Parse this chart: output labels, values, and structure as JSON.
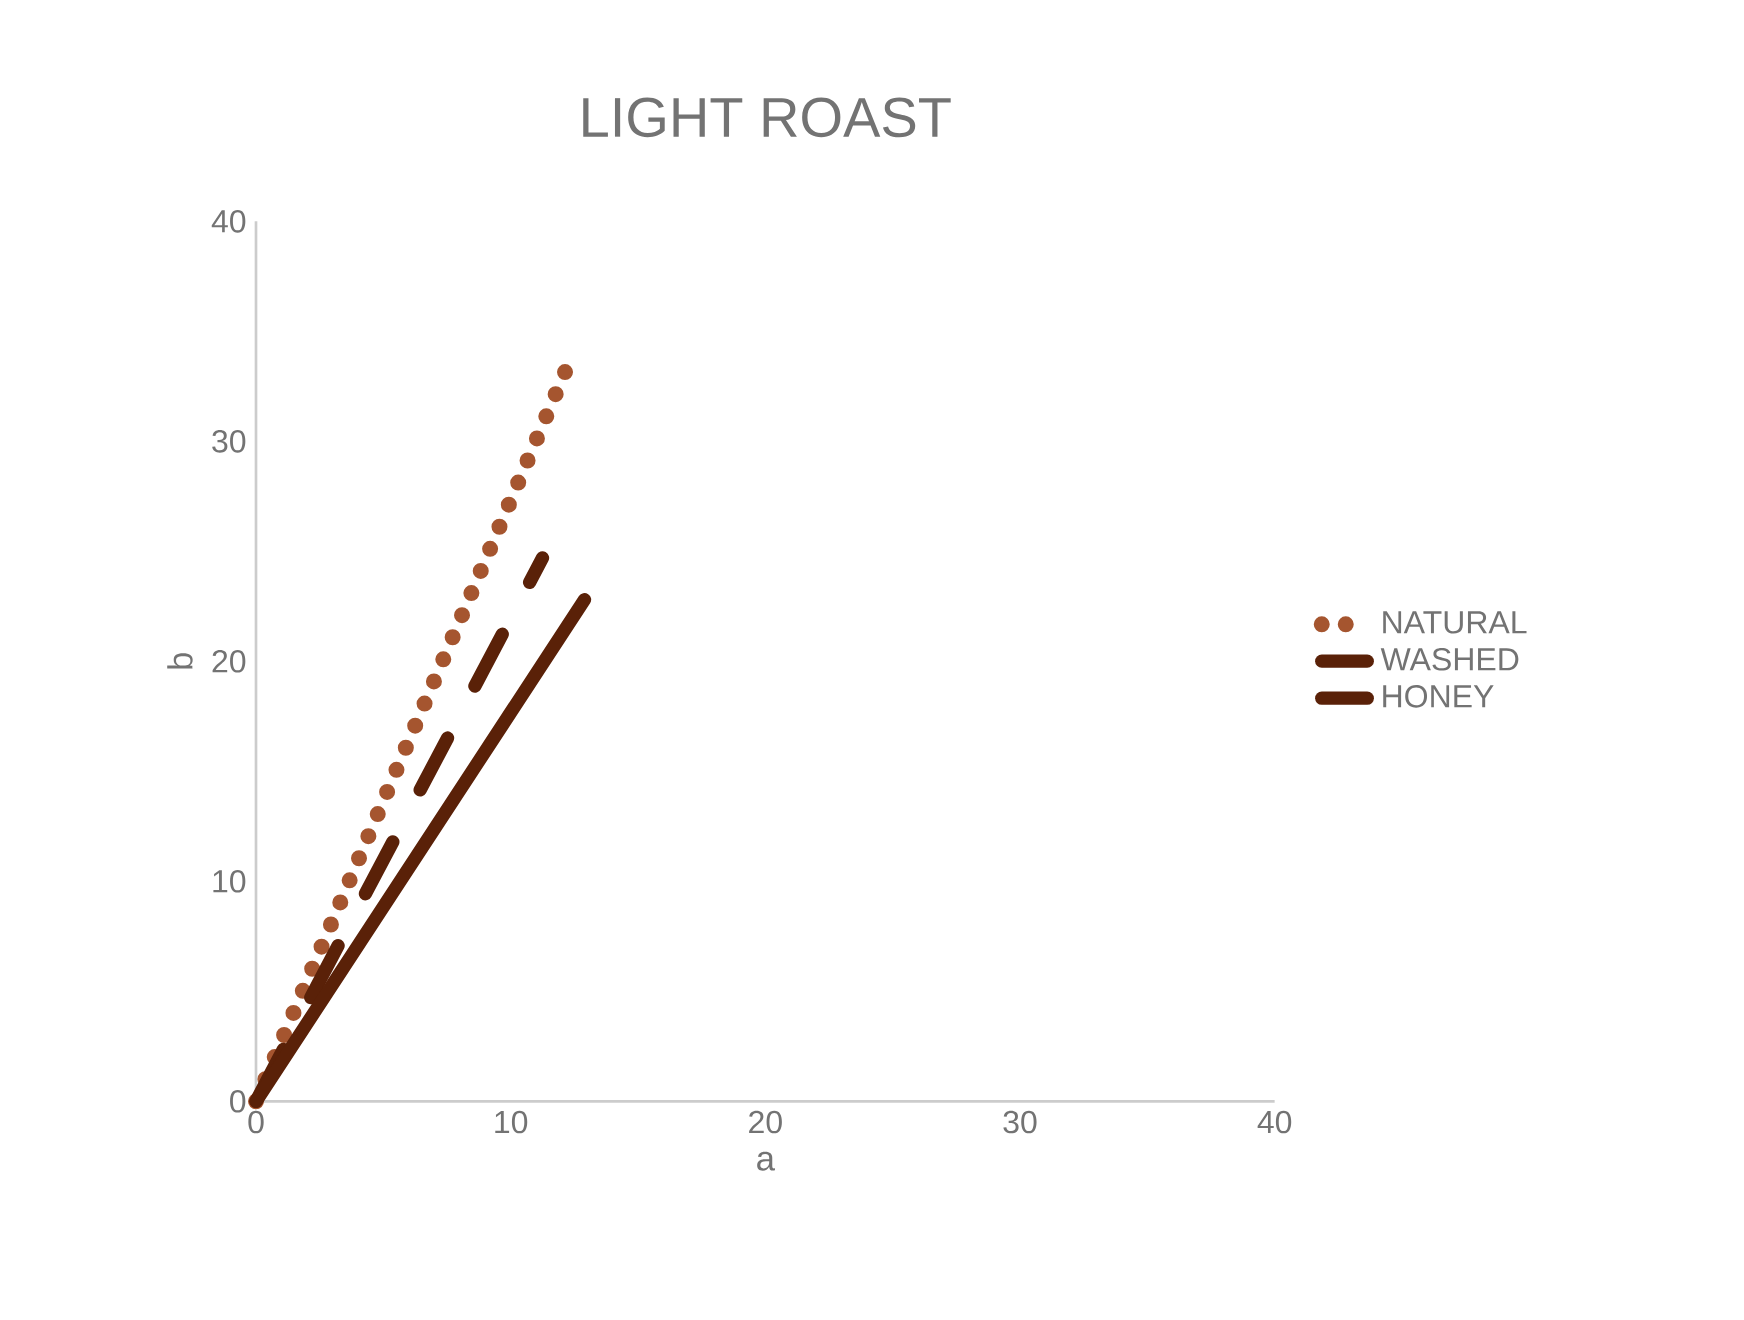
{
  "chart_data": {
    "type": "line",
    "title": "LIGHT ROAST",
    "xlabel": "a",
    "ylabel": "b",
    "xlim": [
      0,
      40
    ],
    "ylim": [
      0,
      40
    ],
    "xticks": [
      0,
      10,
      20,
      30,
      40
    ],
    "yticks": [
      0,
      10,
      20,
      30,
      40
    ],
    "legend": "right",
    "grid": false,
    "series": [
      {
        "name": "NATURAL",
        "color": "#a5552f",
        "line_style": "dotted",
        "x": [
          0,
          12.3
        ],
        "values": [
          0,
          33.6
        ]
      },
      {
        "name": "WASHED",
        "color": "#5a2108",
        "line_style": "dashed",
        "x": [
          0,
          11.25
        ],
        "values": [
          0,
          24.7
        ]
      },
      {
        "name": "HONEY",
        "color": "#5a2108",
        "line_style": "solid",
        "x": [
          0,
          12.9
        ],
        "values": [
          0,
          22.8
        ]
      }
    ]
  }
}
